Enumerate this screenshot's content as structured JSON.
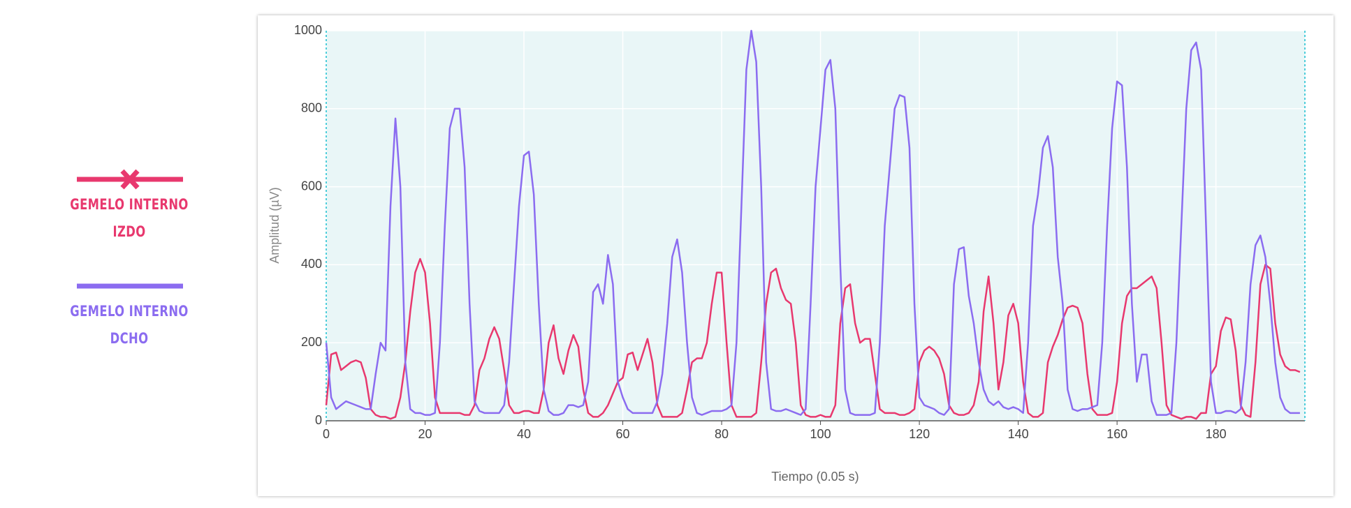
{
  "chart_data": {
    "type": "line",
    "x_label": "Tiempo (0.05 s)",
    "y_label": "Amplitud (µV)",
    "x": [
      0,
      1,
      2,
      3,
      4,
      5,
      6,
      7,
      8,
      9,
      10,
      11,
      12,
      13,
      14,
      15,
      16,
      17,
      18,
      19,
      20,
      21,
      22,
      23,
      24,
      25,
      26,
      27,
      28,
      29,
      30,
      31,
      32,
      33,
      34,
      35,
      36,
      37,
      38,
      39,
      40,
      41,
      42,
      43,
      44,
      45,
      46,
      47,
      48,
      49,
      50,
      51,
      52,
      53,
      54,
      55,
      56,
      57,
      58,
      59,
      60,
      61,
      62,
      63,
      64,
      65,
      66,
      67,
      68,
      69,
      70,
      71,
      72,
      73,
      74,
      75,
      76,
      77,
      78,
      79,
      80,
      81,
      82,
      83,
      84,
      85,
      86,
      87,
      88,
      89,
      90,
      91,
      92,
      93,
      94,
      95,
      96,
      97,
      98,
      99,
      100,
      101,
      102,
      103,
      104,
      105,
      106,
      107,
      108,
      109,
      110,
      111,
      112,
      113,
      114,
      115,
      116,
      117,
      118,
      119,
      120,
      121,
      122,
      123,
      124,
      125,
      126,
      127,
      128,
      129,
      130,
      131,
      132,
      133,
      134,
      135,
      136,
      137,
      138,
      139,
      140,
      141,
      142,
      143,
      144,
      145,
      146,
      147,
      148,
      149,
      150,
      151,
      152,
      153,
      154,
      155,
      156,
      157,
      158,
      159,
      160,
      161,
      162,
      163,
      164,
      165,
      166,
      167,
      168,
      169,
      170,
      171,
      172,
      173,
      174,
      175,
      176,
      177,
      178,
      179,
      180,
      181,
      182,
      183,
      184,
      185,
      186,
      187,
      188,
      189,
      190,
      191,
      192,
      193,
      194,
      195,
      196,
      197
    ],
    "series": [
      {
        "name": "GEMELO INTERNO IZDO",
        "color": "#e8386e",
        "hidden_marker": true,
        "values": [
          40,
          170,
          175,
          130,
          140,
          150,
          155,
          150,
          110,
          30,
          15,
          10,
          10,
          5,
          10,
          60,
          150,
          280,
          380,
          415,
          380,
          250,
          60,
          20,
          20,
          20,
          20,
          20,
          15,
          15,
          40,
          130,
          160,
          210,
          240,
          210,
          130,
          40,
          20,
          20,
          25,
          25,
          20,
          20,
          80,
          200,
          245,
          160,
          120,
          180,
          220,
          190,
          80,
          20,
          10,
          10,
          20,
          40,
          70,
          100,
          110,
          170,
          175,
          130,
          170,
          210,
          150,
          40,
          10,
          10,
          10,
          10,
          20,
          80,
          150,
          160,
          160,
          200,
          300,
          380,
          380,
          200,
          40,
          10,
          10,
          10,
          10,
          20,
          150,
          300,
          380,
          390,
          340,
          310,
          300,
          200,
          40,
          15,
          10,
          10,
          15,
          10,
          10,
          40,
          250,
          340,
          350,
          250,
          200,
          210,
          210,
          120,
          30,
          20,
          20,
          20,
          15,
          15,
          20,
          30,
          150,
          180,
          190,
          180,
          160,
          120,
          40,
          20,
          15,
          15,
          20,
          40,
          100,
          280,
          370,
          250,
          80,
          150,
          270,
          300,
          250,
          100,
          20,
          10,
          10,
          20,
          150,
          190,
          220,
          260,
          290,
          295,
          290,
          250,
          120,
          30,
          15,
          15,
          15,
          20,
          100,
          250,
          320,
          340,
          340,
          350,
          360,
          370,
          340,
          200,
          40,
          15,
          10,
          5,
          10,
          10,
          5,
          20,
          20,
          120,
          140,
          230,
          265,
          260,
          180,
          40,
          15,
          10,
          150,
          350,
          400,
          390,
          250,
          170,
          140,
          130,
          130,
          125
        ]
      },
      {
        "name": "GEMELO INTERNO DCHO",
        "color": "#8b6cf0",
        "values": [
          200,
          60,
          30,
          40,
          50,
          45,
          40,
          35,
          30,
          30,
          120,
          200,
          180,
          550,
          775,
          600,
          150,
          30,
          20,
          20,
          15,
          15,
          20,
          200,
          500,
          750,
          800,
          800,
          650,
          300,
          50,
          25,
          20,
          20,
          20,
          20,
          40,
          150,
          350,
          550,
          680,
          690,
          580,
          300,
          80,
          25,
          15,
          15,
          20,
          40,
          40,
          35,
          40,
          100,
          330,
          350,
          300,
          425,
          350,
          100,
          60,
          30,
          20,
          20,
          20,
          20,
          20,
          50,
          120,
          250,
          420,
          465,
          380,
          200,
          60,
          20,
          15,
          20,
          25,
          25,
          25,
          30,
          40,
          200,
          550,
          900,
          1000,
          920,
          600,
          150,
          30,
          25,
          25,
          30,
          25,
          20,
          15,
          30,
          300,
          600,
          750,
          900,
          925,
          800,
          400,
          80,
          20,
          15,
          15,
          15,
          15,
          20,
          200,
          500,
          650,
          800,
          835,
          830,
          700,
          300,
          60,
          40,
          35,
          30,
          20,
          15,
          30,
          350,
          440,
          445,
          320,
          250,
          150,
          80,
          50,
          40,
          50,
          35,
          30,
          35,
          30,
          20,
          200,
          500,
          580,
          700,
          730,
          650,
          420,
          300,
          80,
          30,
          25,
          30,
          30,
          35,
          40,
          200,
          500,
          750,
          870,
          860,
          650,
          300,
          100,
          170,
          170,
          50,
          15,
          15,
          15,
          20,
          200,
          500,
          800,
          950,
          970,
          900,
          500,
          100,
          20,
          20,
          25,
          25,
          20,
          30,
          150,
          350,
          450,
          475,
          420,
          300,
          150,
          60,
          30,
          20,
          20,
          20
        ]
      }
    ],
    "xlim": [
      0,
      198
    ],
    "ylim": [
      0,
      1000
    ],
    "xticks": [
      0,
      20,
      40,
      60,
      80,
      100,
      120,
      140,
      160,
      180
    ],
    "yticks": [
      0,
      200,
      400,
      600,
      800,
      1000
    ],
    "grid": true
  }
}
